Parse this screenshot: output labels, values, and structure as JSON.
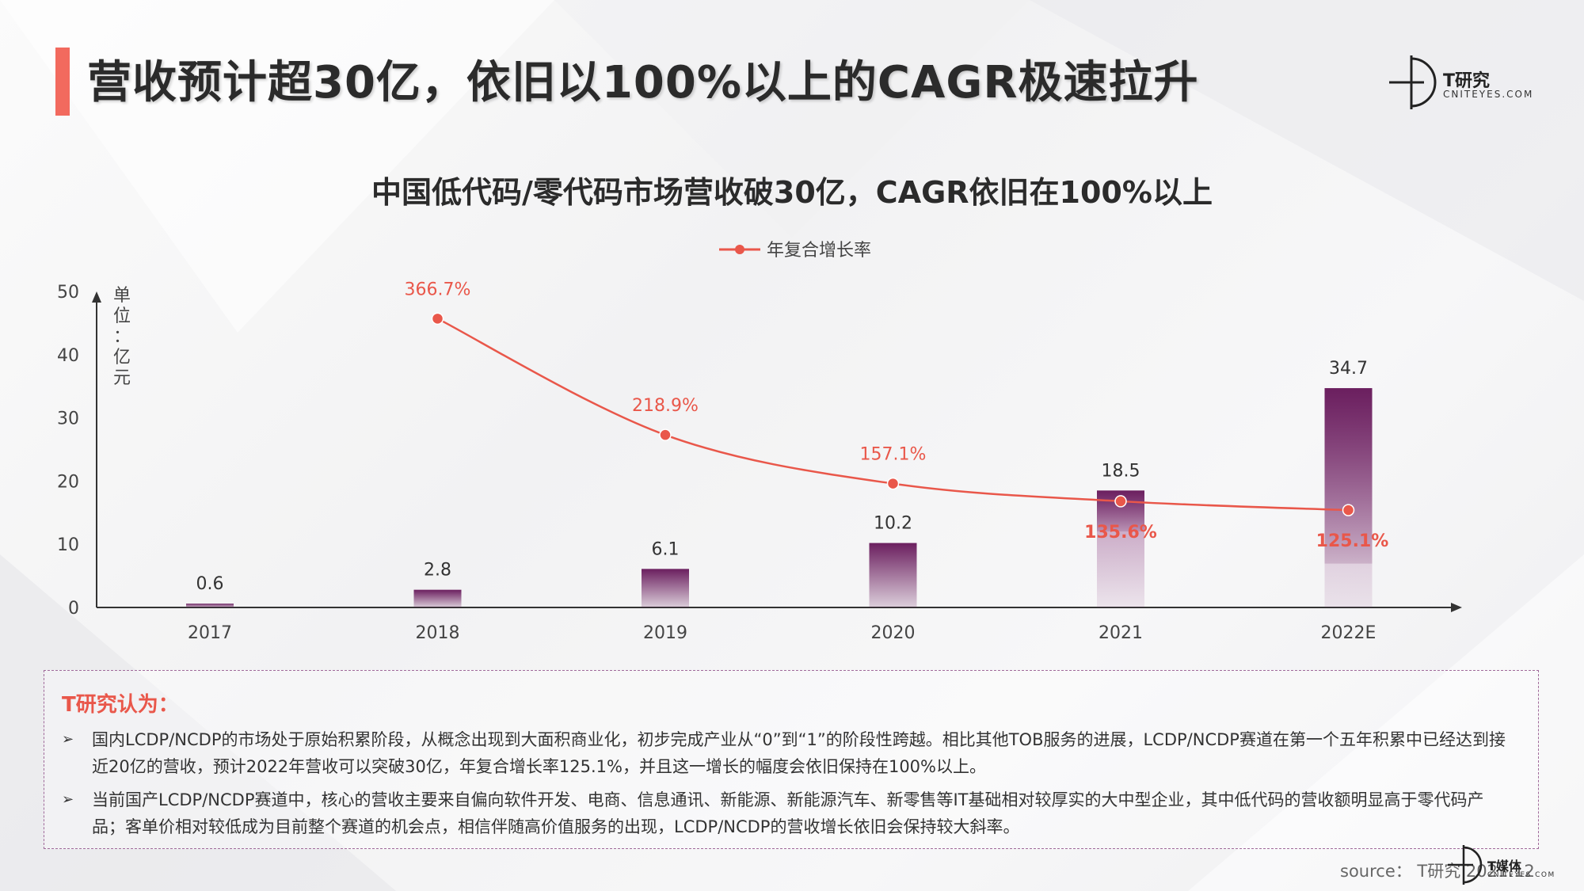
{
  "slide": {
    "title": "营收预计超30亿，依旧以100%以上的CAGR极速拉升",
    "accent_color": "#f26a5e"
  },
  "logo": {
    "name_cn": "T研究",
    "name_en": "CNITEYES.COM"
  },
  "chart_data": {
    "type": "bar",
    "title": "中国低代码/零代码市场营收破30亿，CAGR依旧在100%以上",
    "ylabel": "单位：亿元",
    "ylim": [
      0,
      50
    ],
    "yticks": [
      0,
      10,
      20,
      30,
      40,
      50
    ],
    "categories": [
      "2017",
      "2018",
      "2019",
      "2020",
      "2021",
      "2022E"
    ],
    "values": [
      0.6,
      2.8,
      6.1,
      10.2,
      18.5,
      34.7
    ],
    "value_labels": [
      "0.6",
      "2.8",
      "6.1",
      "10.2",
      "18.5",
      "34.7"
    ],
    "bar_color": "#6b1f5f",
    "line_series": {
      "name": "年复合增长率",
      "color": "#e9574a",
      "categories": [
        "2018",
        "2019",
        "2020",
        "2021",
        "2022E"
      ],
      "labels": [
        "366.7%",
        "218.9%",
        "157.1%",
        "135.6%",
        "125.1%"
      ],
      "plot_y": [
        45.7,
        27.3,
        19.6,
        16.8,
        15.4
      ]
    },
    "legend": "top-center"
  },
  "insight": {
    "heading": "T研究认为：",
    "bullets": [
      "国内LCDP/NCDP的市场处于原始积累阶段，从概念出现到大面积商业化，初步完成产业从“0”到“1”的阶段性跨越。相比其他TOB服务的进展，LCDP/NCDP赛道在第一个五年积累中已经达到接近20亿的营收，预计2022年营收可以突破30亿，年复合增长率125.1%，并且这一增长的幅度会依旧保持在100%以上。",
      "当前国产LCDP/NCDP赛道中，核心的营收主要来自偏向软件开发、电商、信息通讯、新能源、新能源汽车、新零售等IT基础相对较厚实的大中型企业，其中低代码的营收额明显高于零代码产品；客单价相对较低成为目前整个赛道的机会点，相信伴随高价值服务的出现，LCDP/NCDP的营收增长依旧会保持较大斜率。"
    ]
  },
  "footer": {
    "source": "source： T研究 2021.12",
    "logo_cn": "T媒体",
    "logo_en": "CNITEYES.COM"
  }
}
